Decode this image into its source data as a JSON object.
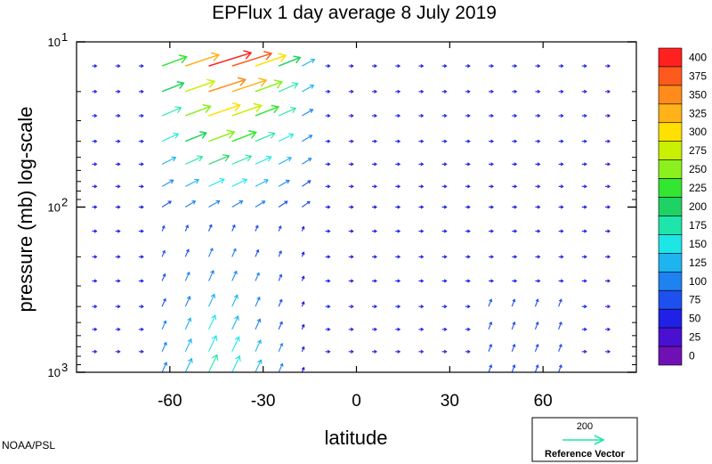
{
  "chart_data": {
    "type": "vector-field",
    "title": "EPFlux  1 day average  8 July      2019",
    "xlabel": "latitude",
    "ylabel": "pressure (mb)  log-scale",
    "xlim": [
      -90,
      90
    ],
    "ylim": [
      1000,
      10
    ],
    "yscale": "log",
    "x_ticks": [
      {
        "value": -60,
        "label": "-60"
      },
      {
        "value": -30,
        "label": "-30"
      },
      {
        "value": 0,
        "label": "0"
      },
      {
        "value": 30,
        "label": "30"
      },
      {
        "value": 60,
        "label": "60"
      }
    ],
    "y_ticks": [
      {
        "value": 10,
        "base": "10",
        "exp": "1"
      },
      {
        "value": 100,
        "base": "10",
        "exp": "2"
      },
      {
        "value": 1000,
        "base": "10",
        "exp": "3"
      }
    ],
    "colorbar": {
      "levels": [
        "400",
        "375",
        "350",
        "325",
        "300",
        "275",
        "250",
        "225",
        "200",
        "175",
        "150",
        "125",
        "100",
        "75",
        "50",
        "25",
        "0"
      ],
      "colors": [
        "#ff2020",
        "#ff5a1e",
        "#ff8c1a",
        "#ffb21a",
        "#ffe000",
        "#c8f000",
        "#8cf01e",
        "#32e632",
        "#1ed264",
        "#1ee6aa",
        "#1ee6e6",
        "#1eb4f0",
        "#1e82f0",
        "#1e50f0",
        "#2020e6",
        "#4a10d2",
        "#7010b4"
      ]
    },
    "reference_vector": {
      "label": "Reference Vector",
      "value": "200",
      "color": "#1ee6aa"
    },
    "credit": "NOAA/PSL"
  }
}
